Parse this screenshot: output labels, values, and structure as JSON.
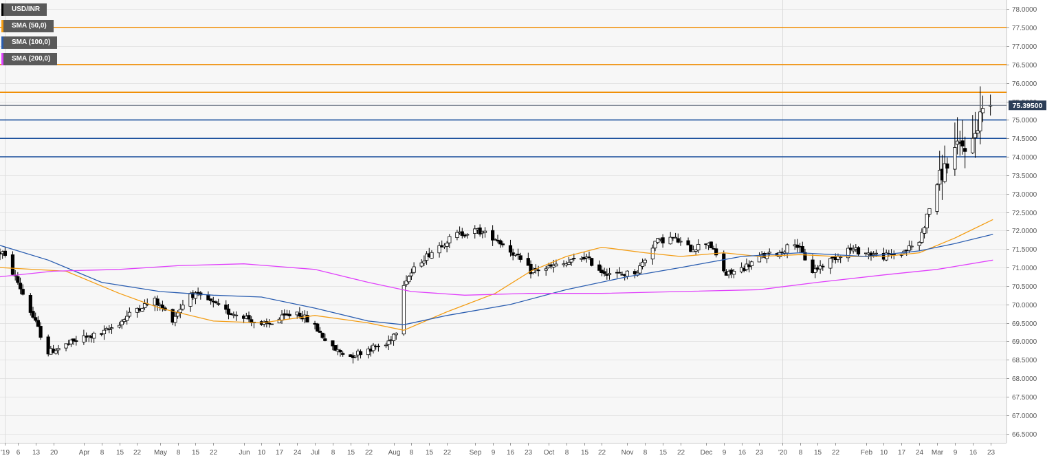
{
  "chart_data": {
    "type": "candlestick",
    "symbol": "USD/INR",
    "current_price": "75.39500",
    "y_axis": {
      "min": 66.25,
      "max": 78.25,
      "ticks": [
        "66.5000",
        "67.0000",
        "67.5000",
        "68.0000",
        "68.5000",
        "69.0000",
        "69.5000",
        "70.0000",
        "70.5000",
        "71.0000",
        "71.5000",
        "72.0000",
        "72.5000",
        "73.0000",
        "73.5000",
        "74.0000",
        "74.5000",
        "75.0000",
        "75.5000",
        "76.0000",
        "76.5000",
        "77.0000",
        "77.5000",
        "78.0000"
      ]
    },
    "x_axis": {
      "start": "2019-02-27",
      "end": "2020-03-25",
      "ticks": [
        {
          "label": "'19",
          "date": "2019-03-01"
        },
        {
          "label": "6",
          "date": "2019-03-06"
        },
        {
          "label": "13",
          "date": "2019-03-13"
        },
        {
          "label": "20",
          "date": "2019-03-20"
        },
        {
          "label": "Apr",
          "date": "2019-04-01"
        },
        {
          "label": "8",
          "date": "2019-04-08"
        },
        {
          "label": "15",
          "date": "2019-04-15"
        },
        {
          "label": "22",
          "date": "2019-04-22"
        },
        {
          "label": "May",
          "date": "2019-05-01"
        },
        {
          "label": "8",
          "date": "2019-05-08"
        },
        {
          "label": "15",
          "date": "2019-05-15"
        },
        {
          "label": "22",
          "date": "2019-05-22"
        },
        {
          "label": "Jun",
          "date": "2019-06-03"
        },
        {
          "label": "10",
          "date": "2019-06-10"
        },
        {
          "label": "17",
          "date": "2019-06-17"
        },
        {
          "label": "24",
          "date": "2019-06-24"
        },
        {
          "label": "Jul",
          "date": "2019-07-01"
        },
        {
          "label": "8",
          "date": "2019-07-08"
        },
        {
          "label": "15",
          "date": "2019-07-15"
        },
        {
          "label": "22",
          "date": "2019-07-22"
        },
        {
          "label": "Aug",
          "date": "2019-08-01"
        },
        {
          "label": "8",
          "date": "2019-08-08"
        },
        {
          "label": "15",
          "date": "2019-08-15"
        },
        {
          "label": "22",
          "date": "2019-08-22"
        },
        {
          "label": "Sep",
          "date": "2019-09-02"
        },
        {
          "label": "9",
          "date": "2019-09-09"
        },
        {
          "label": "16",
          "date": "2019-09-16"
        },
        {
          "label": "23",
          "date": "2019-09-23"
        },
        {
          "label": "Oct",
          "date": "2019-10-01"
        },
        {
          "label": "8",
          "date": "2019-10-08"
        },
        {
          "label": "15",
          "date": "2019-10-15"
        },
        {
          "label": "22",
          "date": "2019-10-22"
        },
        {
          "label": "Nov",
          "date": "2019-11-01"
        },
        {
          "label": "8",
          "date": "2019-11-08"
        },
        {
          "label": "15",
          "date": "2019-11-15"
        },
        {
          "label": "22",
          "date": "2019-11-22"
        },
        {
          "label": "Dec",
          "date": "2019-12-02"
        },
        {
          "label": "9",
          "date": "2019-12-09"
        },
        {
          "label": "16",
          "date": "2019-12-16"
        },
        {
          "label": "23",
          "date": "2019-12-23"
        },
        {
          "label": "'20",
          "date": "2020-01-01"
        },
        {
          "label": "8",
          "date": "2020-01-08"
        },
        {
          "label": "15",
          "date": "2020-01-15"
        },
        {
          "label": "22",
          "date": "2020-01-22"
        },
        {
          "label": "Feb",
          "date": "2020-02-03"
        },
        {
          "label": "10",
          "date": "2020-02-10"
        },
        {
          "label": "17",
          "date": "2020-02-17"
        },
        {
          "label": "24",
          "date": "2020-02-24"
        },
        {
          "label": "Mar",
          "date": "2020-03-02"
        },
        {
          "label": "9",
          "date": "2020-03-09"
        },
        {
          "label": "16",
          "date": "2020-03-16"
        },
        {
          "label": "23",
          "date": "2020-03-23"
        }
      ]
    },
    "year_separators": [
      "2019-03-01",
      "2020-01-01"
    ],
    "legend": [
      {
        "label": "USD/INR",
        "color": "#000000"
      },
      {
        "label": "SMA (50,0)",
        "color": "#f39c12"
      },
      {
        "label": "SMA (100,0)",
        "color": "#2a5db0"
      },
      {
        "label": "SMA (200,0)",
        "color": "#e040fb"
      }
    ],
    "horizontal_levels": [
      {
        "value": 77.5,
        "color": "#f08c00"
      },
      {
        "value": 76.5,
        "color": "#f08c00"
      },
      {
        "value": 75.75,
        "color": "#f08c00"
      },
      {
        "value": 75.0,
        "color": "#1a4f9c"
      },
      {
        "value": 74.5,
        "color": "#1a4f9c"
      },
      {
        "value": 74.0,
        "color": "#1a4f9c"
      }
    ],
    "candle_anchors": [
      [
        "2019-02-28",
        71.4
      ],
      [
        "2019-03-06",
        70.6
      ],
      [
        "2019-03-13",
        69.5
      ],
      [
        "2019-03-18",
        68.7
      ],
      [
        "2019-03-25",
        68.9
      ],
      [
        "2019-04-01",
        69.1
      ],
      [
        "2019-04-08",
        69.2
      ],
      [
        "2019-04-15",
        69.5
      ],
      [
        "2019-04-22",
        69.9
      ],
      [
        "2019-04-29",
        70.1
      ],
      [
        "2019-05-06",
        69.6
      ],
      [
        "2019-05-13",
        70.3
      ],
      [
        "2019-05-20",
        70.1
      ],
      [
        "2019-05-27",
        69.8
      ],
      [
        "2019-06-03",
        69.7
      ],
      [
        "2019-06-10",
        69.4
      ],
      [
        "2019-06-17",
        69.6
      ],
      [
        "2019-06-24",
        69.8
      ],
      [
        "2019-07-01",
        69.4
      ],
      [
        "2019-07-08",
        68.8
      ],
      [
        "2019-07-15",
        68.6
      ],
      [
        "2019-07-22",
        68.8
      ],
      [
        "2019-07-29",
        68.9
      ],
      [
        "2019-08-02",
        69.3
      ],
      [
        "2019-08-05",
        70.6
      ],
      [
        "2019-08-12",
        71.2
      ],
      [
        "2019-08-19",
        71.6
      ],
      [
        "2019-08-26",
        71.9
      ],
      [
        "2019-09-03",
        72.0
      ],
      [
        "2019-09-10",
        71.8
      ],
      [
        "2019-09-17",
        71.4
      ],
      [
        "2019-09-24",
        70.9
      ],
      [
        "2019-10-01",
        71.0
      ],
      [
        "2019-10-08",
        71.1
      ],
      [
        "2019-10-15",
        71.3
      ],
      [
        "2019-10-22",
        70.9
      ],
      [
        "2019-10-29",
        70.8
      ],
      [
        "2019-11-05",
        70.9
      ],
      [
        "2019-11-12",
        71.7
      ],
      [
        "2019-11-19",
        71.8
      ],
      [
        "2019-11-26",
        71.5
      ],
      [
        "2019-12-03",
        71.7
      ],
      [
        "2019-12-10",
        70.8
      ],
      [
        "2019-12-17",
        71.0
      ],
      [
        "2019-12-24",
        71.3
      ],
      [
        "2019-12-31",
        71.4
      ],
      [
        "2020-01-06",
        71.7
      ],
      [
        "2020-01-13",
        70.9
      ],
      [
        "2020-01-20",
        71.2
      ],
      [
        "2020-01-27",
        71.5
      ],
      [
        "2020-02-03",
        71.4
      ],
      [
        "2020-02-10",
        71.3
      ],
      [
        "2020-02-17",
        71.4
      ],
      [
        "2020-02-24",
        71.7
      ],
      [
        "2020-03-02",
        73.3
      ],
      [
        "2020-03-09",
        74.2
      ],
      [
        "2020-03-16",
        74.4
      ],
      [
        "2020-03-20",
        75.4
      ],
      [
        "2020-03-23",
        75.4
      ]
    ],
    "series": [
      {
        "name": "SMA (50,0)",
        "color": "#f39c12",
        "points": [
          [
            "2019-02-27",
            71.0
          ],
          [
            "2019-03-25",
            70.9
          ],
          [
            "2019-04-15",
            70.3
          ],
          [
            "2019-05-01",
            69.9
          ],
          [
            "2019-05-22",
            69.55
          ],
          [
            "2019-06-10",
            69.5
          ],
          [
            "2019-07-01",
            69.7
          ],
          [
            "2019-07-22",
            69.5
          ],
          [
            "2019-08-05",
            69.3
          ],
          [
            "2019-08-22",
            69.8
          ],
          [
            "2019-09-10",
            70.3
          ],
          [
            "2019-09-24",
            70.9
          ],
          [
            "2019-10-08",
            71.3
          ],
          [
            "2019-10-22",
            71.55
          ],
          [
            "2019-11-08",
            71.4
          ],
          [
            "2019-11-22",
            71.3
          ],
          [
            "2019-12-09",
            71.4
          ],
          [
            "2019-12-23",
            71.3
          ],
          [
            "2020-01-08",
            71.35
          ],
          [
            "2020-01-22",
            71.3
          ],
          [
            "2020-02-10",
            71.3
          ],
          [
            "2020-02-24",
            71.4
          ],
          [
            "2020-03-09",
            71.8
          ],
          [
            "2020-03-24",
            72.3
          ]
        ]
      },
      {
        "name": "SMA (100,0)",
        "color": "#2a5db0",
        "points": [
          [
            "2019-02-27",
            71.6
          ],
          [
            "2019-03-18",
            71.2
          ],
          [
            "2019-04-08",
            70.6
          ],
          [
            "2019-05-01",
            70.35
          ],
          [
            "2019-05-22",
            70.25
          ],
          [
            "2019-06-10",
            70.2
          ],
          [
            "2019-07-01",
            69.9
          ],
          [
            "2019-07-22",
            69.55
          ],
          [
            "2019-08-05",
            69.45
          ],
          [
            "2019-08-22",
            69.7
          ],
          [
            "2019-09-16",
            70.0
          ],
          [
            "2019-10-08",
            70.4
          ],
          [
            "2019-11-01",
            70.75
          ],
          [
            "2019-11-22",
            71.0
          ],
          [
            "2019-12-16",
            71.3
          ],
          [
            "2020-01-08",
            71.4
          ],
          [
            "2020-02-03",
            71.3
          ],
          [
            "2020-02-24",
            71.45
          ],
          [
            "2020-03-09",
            71.65
          ],
          [
            "2020-03-24",
            71.9
          ]
        ]
      },
      {
        "name": "SMA (200,0)",
        "color": "#e040fb",
        "points": [
          [
            "2019-02-27",
            70.75
          ],
          [
            "2019-03-20",
            70.9
          ],
          [
            "2019-04-15",
            70.95
          ],
          [
            "2019-05-08",
            71.05
          ],
          [
            "2019-06-03",
            71.1
          ],
          [
            "2019-07-01",
            70.95
          ],
          [
            "2019-07-22",
            70.6
          ],
          [
            "2019-08-08",
            70.35
          ],
          [
            "2019-08-29",
            70.25
          ],
          [
            "2019-09-23",
            70.3
          ],
          [
            "2019-10-22",
            70.3
          ],
          [
            "2019-11-22",
            70.35
          ],
          [
            "2019-12-23",
            70.4
          ],
          [
            "2020-01-15",
            70.6
          ],
          [
            "2020-02-10",
            70.8
          ],
          [
            "2020-03-02",
            70.95
          ],
          [
            "2020-03-24",
            71.2
          ]
        ]
      }
    ]
  }
}
